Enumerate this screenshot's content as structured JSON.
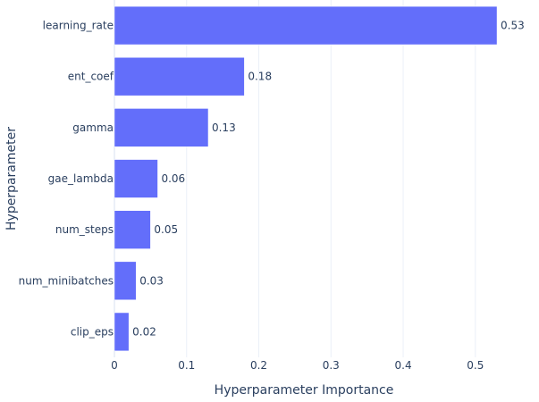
{
  "chart_data": {
    "type": "bar",
    "orientation": "horizontal",
    "title": "",
    "xlabel": "Hyperparameter Importance",
    "ylabel": "Hyperparameter",
    "xlim": [
      0,
      0.525
    ],
    "xticks": [
      0,
      0.1,
      0.2,
      0.3,
      0.4,
      0.5
    ],
    "xtick_labels": [
      "0",
      "0.1",
      "0.2",
      "0.3",
      "0.4",
      "0.5"
    ],
    "grid": true,
    "legend": "none",
    "categories": [
      "learning_rate",
      "ent_coef",
      "gamma",
      "gae_lambda",
      "num_steps",
      "num_minibatches",
      "clip_eps"
    ],
    "values": [
      0.53,
      0.18,
      0.13,
      0.06,
      0.05,
      0.03,
      0.02
    ],
    "data_labels": [
      "0.53",
      "0.18",
      "0.13",
      "0.06",
      "0.05",
      "0.03",
      "0.02"
    ],
    "bar_color": "#636efa"
  }
}
